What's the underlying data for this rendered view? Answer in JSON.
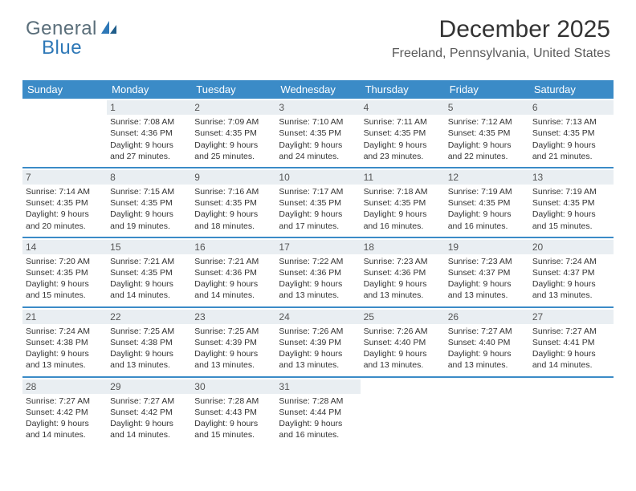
{
  "logo": {
    "general": "General",
    "blue": "Blue"
  },
  "title": "December 2025",
  "location": "Freeland, Pennsylvania, United States",
  "colors": {
    "header_bg": "#3b8bc7",
    "header_fg": "#ffffff",
    "daynum_bg": "#e9eef2",
    "row_border": "#3b8bc7",
    "text": "#333333"
  },
  "days_of_week": [
    "Sunday",
    "Monday",
    "Tuesday",
    "Wednesday",
    "Thursday",
    "Friday",
    "Saturday"
  ],
  "weeks": [
    [
      {
        "n": "",
        "sr": "",
        "ss": "",
        "dl": ""
      },
      {
        "n": "1",
        "sr": "Sunrise: 7:08 AM",
        "ss": "Sunset: 4:36 PM",
        "dl": "Daylight: 9 hours and 27 minutes."
      },
      {
        "n": "2",
        "sr": "Sunrise: 7:09 AM",
        "ss": "Sunset: 4:35 PM",
        "dl": "Daylight: 9 hours and 25 minutes."
      },
      {
        "n": "3",
        "sr": "Sunrise: 7:10 AM",
        "ss": "Sunset: 4:35 PM",
        "dl": "Daylight: 9 hours and 24 minutes."
      },
      {
        "n": "4",
        "sr": "Sunrise: 7:11 AM",
        "ss": "Sunset: 4:35 PM",
        "dl": "Daylight: 9 hours and 23 minutes."
      },
      {
        "n": "5",
        "sr": "Sunrise: 7:12 AM",
        "ss": "Sunset: 4:35 PM",
        "dl": "Daylight: 9 hours and 22 minutes."
      },
      {
        "n": "6",
        "sr": "Sunrise: 7:13 AM",
        "ss": "Sunset: 4:35 PM",
        "dl": "Daylight: 9 hours and 21 minutes."
      }
    ],
    [
      {
        "n": "7",
        "sr": "Sunrise: 7:14 AM",
        "ss": "Sunset: 4:35 PM",
        "dl": "Daylight: 9 hours and 20 minutes."
      },
      {
        "n": "8",
        "sr": "Sunrise: 7:15 AM",
        "ss": "Sunset: 4:35 PM",
        "dl": "Daylight: 9 hours and 19 minutes."
      },
      {
        "n": "9",
        "sr": "Sunrise: 7:16 AM",
        "ss": "Sunset: 4:35 PM",
        "dl": "Daylight: 9 hours and 18 minutes."
      },
      {
        "n": "10",
        "sr": "Sunrise: 7:17 AM",
        "ss": "Sunset: 4:35 PM",
        "dl": "Daylight: 9 hours and 17 minutes."
      },
      {
        "n": "11",
        "sr": "Sunrise: 7:18 AM",
        "ss": "Sunset: 4:35 PM",
        "dl": "Daylight: 9 hours and 16 minutes."
      },
      {
        "n": "12",
        "sr": "Sunrise: 7:19 AM",
        "ss": "Sunset: 4:35 PM",
        "dl": "Daylight: 9 hours and 16 minutes."
      },
      {
        "n": "13",
        "sr": "Sunrise: 7:19 AM",
        "ss": "Sunset: 4:35 PM",
        "dl": "Daylight: 9 hours and 15 minutes."
      }
    ],
    [
      {
        "n": "14",
        "sr": "Sunrise: 7:20 AM",
        "ss": "Sunset: 4:35 PM",
        "dl": "Daylight: 9 hours and 15 minutes."
      },
      {
        "n": "15",
        "sr": "Sunrise: 7:21 AM",
        "ss": "Sunset: 4:35 PM",
        "dl": "Daylight: 9 hours and 14 minutes."
      },
      {
        "n": "16",
        "sr": "Sunrise: 7:21 AM",
        "ss": "Sunset: 4:36 PM",
        "dl": "Daylight: 9 hours and 14 minutes."
      },
      {
        "n": "17",
        "sr": "Sunrise: 7:22 AM",
        "ss": "Sunset: 4:36 PM",
        "dl": "Daylight: 9 hours and 13 minutes."
      },
      {
        "n": "18",
        "sr": "Sunrise: 7:23 AM",
        "ss": "Sunset: 4:36 PM",
        "dl": "Daylight: 9 hours and 13 minutes."
      },
      {
        "n": "19",
        "sr": "Sunrise: 7:23 AM",
        "ss": "Sunset: 4:37 PM",
        "dl": "Daylight: 9 hours and 13 minutes."
      },
      {
        "n": "20",
        "sr": "Sunrise: 7:24 AM",
        "ss": "Sunset: 4:37 PM",
        "dl": "Daylight: 9 hours and 13 minutes."
      }
    ],
    [
      {
        "n": "21",
        "sr": "Sunrise: 7:24 AM",
        "ss": "Sunset: 4:38 PM",
        "dl": "Daylight: 9 hours and 13 minutes."
      },
      {
        "n": "22",
        "sr": "Sunrise: 7:25 AM",
        "ss": "Sunset: 4:38 PM",
        "dl": "Daylight: 9 hours and 13 minutes."
      },
      {
        "n": "23",
        "sr": "Sunrise: 7:25 AM",
        "ss": "Sunset: 4:39 PM",
        "dl": "Daylight: 9 hours and 13 minutes."
      },
      {
        "n": "24",
        "sr": "Sunrise: 7:26 AM",
        "ss": "Sunset: 4:39 PM",
        "dl": "Daylight: 9 hours and 13 minutes."
      },
      {
        "n": "25",
        "sr": "Sunrise: 7:26 AM",
        "ss": "Sunset: 4:40 PM",
        "dl": "Daylight: 9 hours and 13 minutes."
      },
      {
        "n": "26",
        "sr": "Sunrise: 7:27 AM",
        "ss": "Sunset: 4:40 PM",
        "dl": "Daylight: 9 hours and 13 minutes."
      },
      {
        "n": "27",
        "sr": "Sunrise: 7:27 AM",
        "ss": "Sunset: 4:41 PM",
        "dl": "Daylight: 9 hours and 14 minutes."
      }
    ],
    [
      {
        "n": "28",
        "sr": "Sunrise: 7:27 AM",
        "ss": "Sunset: 4:42 PM",
        "dl": "Daylight: 9 hours and 14 minutes."
      },
      {
        "n": "29",
        "sr": "Sunrise: 7:27 AM",
        "ss": "Sunset: 4:42 PM",
        "dl": "Daylight: 9 hours and 14 minutes."
      },
      {
        "n": "30",
        "sr": "Sunrise: 7:28 AM",
        "ss": "Sunset: 4:43 PM",
        "dl": "Daylight: 9 hours and 15 minutes."
      },
      {
        "n": "31",
        "sr": "Sunrise: 7:28 AM",
        "ss": "Sunset: 4:44 PM",
        "dl": "Daylight: 9 hours and 16 minutes."
      },
      {
        "n": "",
        "sr": "",
        "ss": "",
        "dl": ""
      },
      {
        "n": "",
        "sr": "",
        "ss": "",
        "dl": ""
      },
      {
        "n": "",
        "sr": "",
        "ss": "",
        "dl": ""
      }
    ]
  ]
}
